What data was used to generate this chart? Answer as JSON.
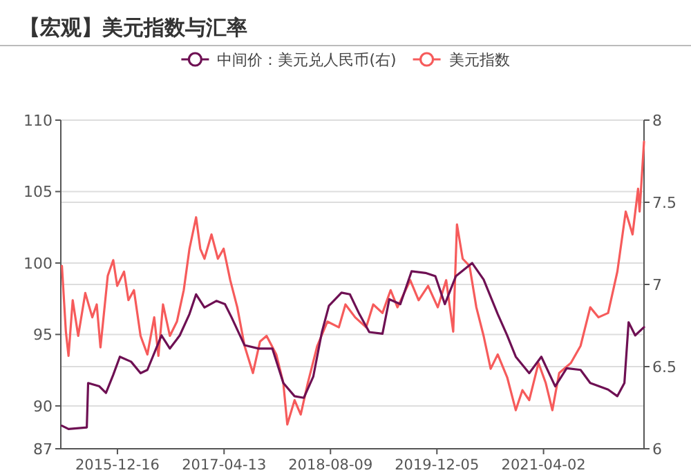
{
  "chart_data": {
    "type": "line",
    "title": "【宏观】美元指数与汇率",
    "legend": "top",
    "grid": "y",
    "xlim": [
      "2015-04-03",
      "2022-07-02"
    ],
    "xticks": [
      "2015-12-16",
      "2017-04-13",
      "2018-08-09",
      "2019-12-05",
      "2021-04-02"
    ],
    "ylim": [
      87,
      110
    ],
    "yticks": [
      87,
      90,
      95,
      100,
      105,
      110
    ],
    "y2lim": [
      6,
      8
    ],
    "y2ticks": [
      6,
      6.5,
      7,
      7.5,
      8
    ],
    "series": [
      {
        "name": "中间价：美元兑人民币(右)",
        "color": "#6e1053",
        "axis": "y2",
        "x": [
          "2015-04-08",
          "2015-05-08",
          "2015-07-30",
          "2015-08-05",
          "2015-09-25",
          "2015-10-25",
          "2015-11-27",
          "2015-12-27",
          "2016-02-16",
          "2016-03-30",
          "2016-04-30",
          "2016-07-03",
          "2016-08-10",
          "2016-09-24",
          "2016-11-07",
          "2016-12-07",
          "2017-01-14",
          "2017-03-09",
          "2017-04-17",
          "2017-05-17",
          "2017-07-15",
          "2017-09-17",
          "2017-11-18",
          "2018-01-07",
          "2018-02-27",
          "2018-04-10",
          "2018-05-23",
          "2018-07-01",
          "2018-08-02",
          "2018-09-28",
          "2018-11-05",
          "2018-12-18",
          "2019-02-01",
          "2019-04-02",
          "2019-05-03",
          "2019-06-22",
          "2019-08-12",
          "2019-10-14",
          "2019-11-28",
          "2020-01-10",
          "2020-02-29",
          "2020-05-13",
          "2020-07-04",
          "2020-09-06",
          "2020-10-19",
          "2020-11-27",
          "2021-01-27",
          "2021-03-23",
          "2021-05-25",
          "2021-07-16",
          "2021-09-17",
          "2021-10-31",
          "2022-01-20",
          "2022-03-03",
          "2022-04-04",
          "2022-04-23",
          "2022-05-23",
          "2022-07-02"
        ],
        "values": [
          6.14,
          6.12,
          6.13,
          6.4,
          6.38,
          6.34,
          6.45,
          6.56,
          6.53,
          6.46,
          6.48,
          6.69,
          6.61,
          6.69,
          6.82,
          6.94,
          6.86,
          6.9,
          6.88,
          6.8,
          6.63,
          6.61,
          6.61,
          6.4,
          6.32,
          6.31,
          6.44,
          6.71,
          6.87,
          6.95,
          6.94,
          6.82,
          6.71,
          6.7,
          6.91,
          6.88,
          7.08,
          7.07,
          7.05,
          6.88,
          7.05,
          7.13,
          7.03,
          6.82,
          6.69,
          6.56,
          6.46,
          6.56,
          6.38,
          6.49,
          6.48,
          6.4,
          6.36,
          6.32,
          6.4,
          6.77,
          6.69,
          6.74
        ]
      },
      {
        "name": "美元指数",
        "color": "#f65b5b",
        "x": [
          "2015-04-08",
          "2015-04-26",
          "2015-05-08",
          "2015-05-27",
          "2015-06-21",
          "2015-07-23",
          "2015-08-24",
          "2015-09-13",
          "2015-09-30",
          "2015-11-02",
          "2015-11-27",
          "2015-12-15",
          "2016-01-15",
          "2016-02-04",
          "2016-02-29",
          "2016-03-30",
          "2016-04-30",
          "2016-05-31",
          "2016-06-19",
          "2016-07-10",
          "2016-08-10",
          "2016-09-11",
          "2016-10-12",
          "2016-11-07",
          "2016-12-07",
          "2016-12-26",
          "2017-01-14",
          "2017-02-15",
          "2017-03-16",
          "2017-04-11",
          "2017-05-11",
          "2017-06-12",
          "2017-07-15",
          "2017-08-22",
          "2017-09-23",
          "2017-10-23",
          "2017-12-06",
          "2018-01-07",
          "2018-01-25",
          "2018-02-27",
          "2018-03-27",
          "2018-04-28",
          "2018-06-10",
          "2018-07-26",
          "2018-09-16",
          "2018-10-16",
          "2018-11-29",
          "2019-01-18",
          "2019-02-19",
          "2019-04-02",
          "2019-05-09",
          "2019-06-09",
          "2019-08-06",
          "2019-09-13",
          "2019-10-26",
          "2019-12-09",
          "2020-01-16",
          "2020-02-17",
          "2020-03-05",
          "2020-03-31",
          "2020-05-01",
          "2020-06-01",
          "2020-07-04",
          "2020-08-05",
          "2020-09-06",
          "2020-10-19",
          "2020-11-27",
          "2020-12-27",
          "2021-01-27",
          "2021-03-10",
          "2021-04-12",
          "2021-05-12",
          "2021-06-12",
          "2021-08-04",
          "2021-09-17",
          "2021-10-31",
          "2021-12-07",
          "2022-01-20",
          "2022-03-03",
          "2022-04-10",
          "2022-05-11",
          "2022-06-05",
          "2022-06-12",
          "2022-07-02"
        ],
        "values": [
          99.8,
          95.2,
          93.5,
          97.4,
          94.9,
          97.9,
          96.2,
          97.1,
          94.1,
          99.1,
          100.2,
          98.4,
          99.4,
          97.4,
          98.1,
          94.9,
          93.6,
          96.2,
          93.5,
          97.1,
          94.9,
          95.9,
          98.1,
          101.0,
          103.2,
          101.0,
          100.3,
          102.0,
          100.3,
          101.0,
          98.8,
          96.9,
          94.2,
          92.3,
          94.5,
          94.9,
          93.6,
          91.6,
          88.7,
          90.4,
          89.4,
          91.6,
          94.2,
          95.9,
          95.5,
          97.1,
          96.2,
          95.5,
          97.1,
          96.5,
          98.1,
          96.9,
          98.8,
          97.4,
          98.4,
          96.9,
          98.8,
          95.2,
          102.7,
          100.3,
          99.8,
          96.9,
          94.9,
          92.6,
          93.6,
          92.0,
          89.7,
          91.1,
          90.4,
          93.0,
          91.6,
          89.7,
          92.3,
          93.0,
          94.2,
          96.9,
          96.2,
          96.5,
          99.4,
          103.6,
          102.0,
          105.2,
          103.6,
          108.5
        ]
      }
    ]
  }
}
